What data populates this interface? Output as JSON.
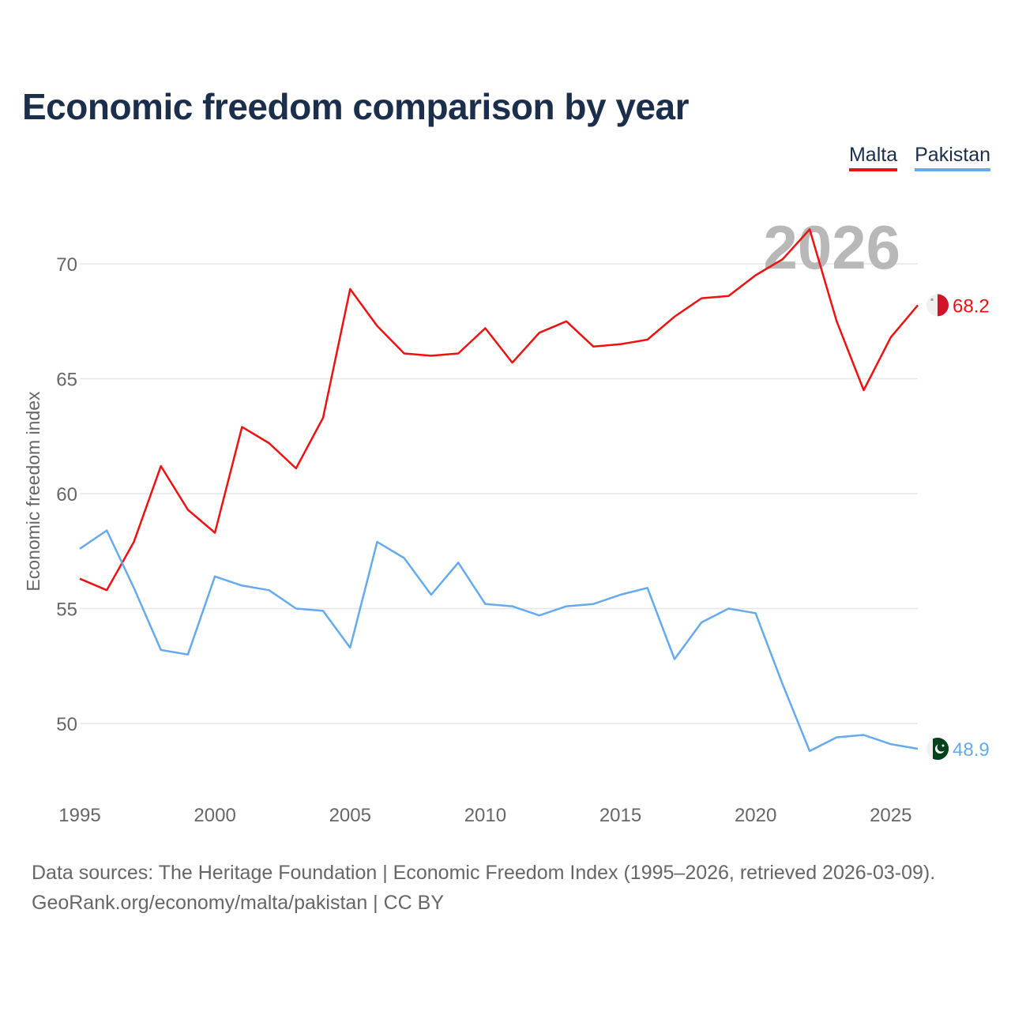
{
  "title": "Economic freedom comparison by year",
  "legend": [
    {
      "label": "Malta",
      "color": "#ee1111"
    },
    {
      "label": "Pakistan",
      "color": "#66aaee"
    }
  ],
  "year_watermark": "2026",
  "source": {
    "line1": "Data sources: The Heritage Foundation | Economic Freedom Index (1995–2026, retrieved 2026-03-09).",
    "line2": "GeoRank.org/economy/malta/pakistan | CC BY"
  },
  "flags": [
    {
      "name": "malta-flag-icon",
      "colors": [
        "#f0f0f0",
        "#cf142b"
      ]
    },
    {
      "name": "pakistan-flag-icon",
      "colors": [
        "#f0f0f0",
        "#01411c"
      ]
    }
  ],
  "chart_data": {
    "type": "line",
    "title": "Economic freedom comparison by year",
    "xlabel": "",
    "ylabel": "Economic freedom index",
    "x": [
      1995,
      1996,
      1997,
      1998,
      1999,
      2000,
      2001,
      2002,
      2003,
      2004,
      2005,
      2006,
      2007,
      2008,
      2009,
      2010,
      2011,
      2012,
      2013,
      2014,
      2015,
      2016,
      2017,
      2018,
      2019,
      2020,
      2021,
      2022,
      2023,
      2024,
      2025,
      2026
    ],
    "xlim": [
      1995,
      2026
    ],
    "ylim": [
      47.5,
      73
    ],
    "xticks": [
      1995,
      2000,
      2005,
      2010,
      2015,
      2020,
      2025
    ],
    "yticks": [
      50,
      55,
      60,
      65,
      70
    ],
    "grid": true,
    "series": [
      {
        "name": "Malta",
        "color": "#ee1111",
        "end_label": "68.2",
        "values": [
          56.3,
          55.8,
          57.9,
          61.2,
          59.3,
          58.3,
          62.9,
          62.2,
          61.1,
          63.3,
          68.9,
          67.3,
          66.1,
          66.0,
          66.1,
          67.2,
          65.7,
          67.0,
          67.5,
          66.4,
          66.5,
          66.7,
          67.7,
          68.5,
          68.6,
          69.5,
          70.2,
          71.5,
          67.5,
          64.5,
          66.8,
          68.2
        ]
      },
      {
        "name": "Pakistan",
        "color": "#66aaee",
        "end_label": "48.9",
        "values": [
          57.6,
          58.4,
          55.9,
          53.2,
          53.0,
          56.4,
          56.0,
          55.8,
          55.0,
          54.9,
          53.3,
          57.9,
          57.2,
          55.6,
          57.0,
          55.2,
          55.1,
          54.7,
          55.1,
          55.2,
          55.6,
          55.9,
          52.8,
          54.4,
          55.0,
          54.8,
          51.7,
          48.8,
          49.4,
          49.5,
          49.1,
          48.9
        ]
      }
    ]
  }
}
